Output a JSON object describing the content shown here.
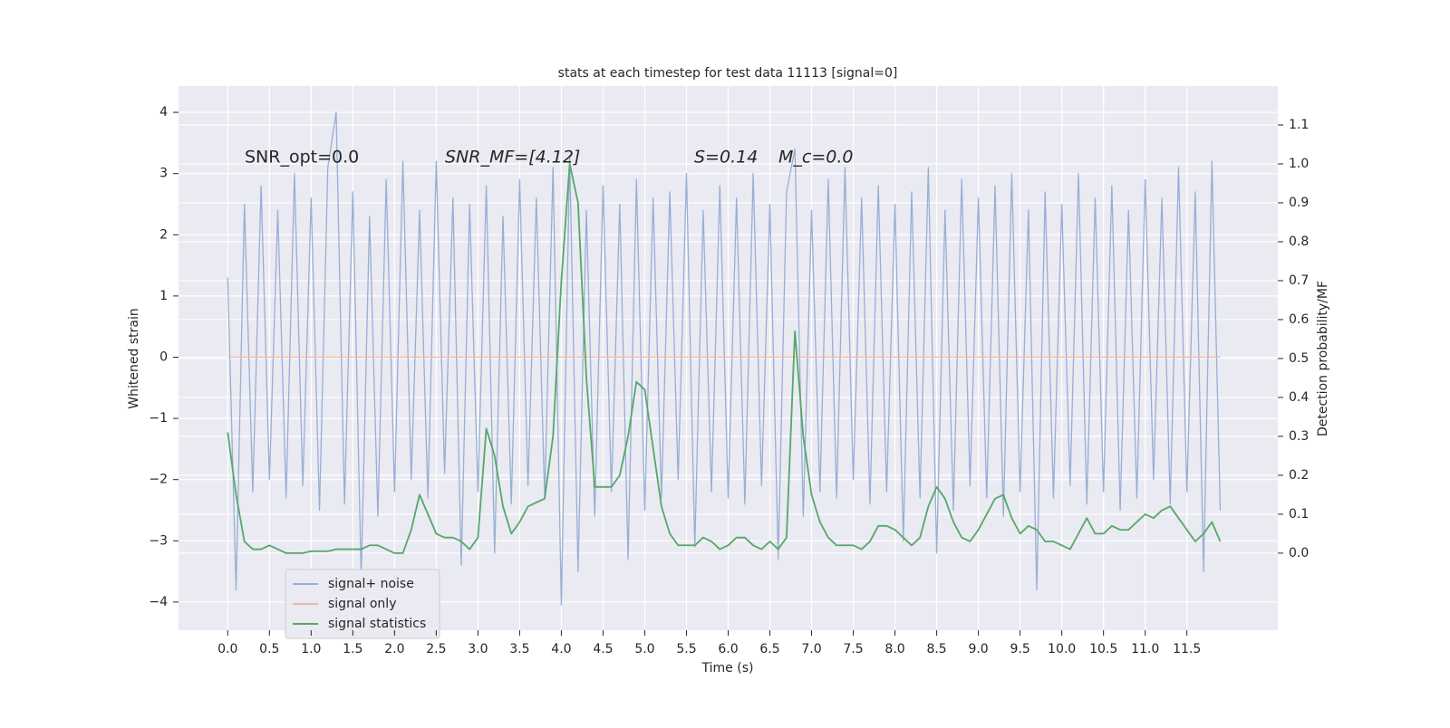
{
  "chart_data": {
    "type": "line",
    "title": "stats at each timestep for test data 11113 [signal=0]",
    "x_label": "Time (s)",
    "y_label": "Whitened strain",
    "y2_label": "Detection probability/MF",
    "annotations": [
      "SNR_opt=0.0",
      "SNR_MF=[4.12]",
      "S=0.14",
      "M_c=0.0"
    ],
    "grid": true,
    "legend": "lower left",
    "xlim": [
      -0.59,
      12.59
    ],
    "ylim": [
      -4.46,
      4.43
    ],
    "y2lim": [
      -0.198,
      1.2
    ],
    "xticks": [
      {
        "value": 0,
        "label": "0.0"
      },
      0.5,
      {
        "value": 1,
        "label": "1.0"
      },
      1.5,
      {
        "value": 2,
        "label": "2.0"
      },
      2.5,
      {
        "value": 3,
        "label": "3.0"
      },
      3.5,
      {
        "value": 4,
        "label": "4.0"
      },
      4.5,
      {
        "value": 5,
        "label": "5.0"
      },
      5.5,
      {
        "value": 6,
        "label": "6.0"
      },
      6.5,
      {
        "value": 7,
        "label": "7.0"
      },
      7.5,
      {
        "value": 8,
        "label": "8.0"
      },
      8.5,
      {
        "value": 9,
        "label": "9.0"
      },
      9.5,
      {
        "value": 10,
        "label": "10.0"
      },
      10.5,
      {
        "value": 11,
        "label": "11.0"
      },
      11.5
    ],
    "yticks": [
      {
        "value": -4,
        "label": "−4"
      },
      {
        "value": -3,
        "label": "−3"
      },
      {
        "value": -2,
        "label": "−2"
      },
      {
        "value": -1,
        "label": "−1"
      },
      0,
      1,
      2,
      3,
      4
    ],
    "y2ticks": [
      {
        "value": 0,
        "label": "0.0"
      },
      0.1,
      0.2,
      0.3,
      0.4,
      0.5,
      0.6,
      0.7,
      0.8,
      0.9,
      {
        "value": 1,
        "label": "1.0"
      },
      1.1
    ],
    "x": [
      0,
      0.1,
      0.2,
      0.3,
      0.4,
      0.5,
      0.6,
      0.7,
      0.8,
      0.9,
      1,
      1.1,
      1.2,
      1.3,
      1.4,
      1.5,
      1.6,
      1.7,
      1.8,
      1.9,
      2,
      2.1,
      2.2,
      2.3,
      2.4,
      2.5,
      2.6,
      2.7,
      2.8,
      2.9,
      3,
      3.1,
      3.2,
      3.3,
      3.4,
      3.5,
      3.6,
      3.7,
      3.8,
      3.9,
      4,
      4.1,
      4.2,
      4.3,
      4.4,
      4.5,
      4.6,
      4.7,
      4.8,
      4.9,
      5,
      5.1,
      5.2,
      5.3,
      5.4,
      5.5,
      5.6,
      5.7,
      5.8,
      5.9,
      6,
      6.1,
      6.2,
      6.3,
      6.4,
      6.5,
      6.6,
      6.7,
      6.8,
      6.9,
      7,
      7.1,
      7.2,
      7.3,
      7.4,
      7.5,
      7.6,
      7.7,
      7.8,
      7.9,
      8,
      8.1,
      8.2,
      8.3,
      8.4,
      8.5,
      8.6,
      8.7,
      8.8,
      8.9,
      9,
      9.1,
      9.2,
      9.3,
      9.4,
      9.5,
      9.6,
      9.7,
      9.8,
      9.9,
      10,
      10.1,
      10.2,
      10.3,
      10.4,
      10.5,
      10.6,
      10.7,
      10.8,
      10.9,
      11,
      11.1,
      11.2,
      11.3,
      11.4,
      11.5,
      11.6,
      11.7,
      11.8,
      11.9
    ],
    "series": [
      {
        "name": "signal+ noise",
        "color": "#98aed4",
        "values": [
          1.3,
          -3.8,
          2.5,
          -2.2,
          2.8,
          -2.0,
          2.4,
          -2.3,
          3.0,
          -2.1,
          2.6,
          -2.5,
          3.1,
          4.0,
          -2.4,
          2.7,
          -3.6,
          2.3,
          -2.6,
          2.9,
          -2.2,
          3.2,
          -2.0,
          2.4,
          -2.3,
          3.2,
          -1.9,
          2.6,
          -3.4,
          2.5,
          -2.2,
          2.8,
          -3.2,
          2.3,
          -2.4,
          2.9,
          -2.1,
          2.6,
          -2.3,
          3.1,
          -4.05,
          3.3,
          -3.5,
          2.4,
          -2.6,
          2.8,
          -2.2,
          2.5,
          -3.3,
          2.9,
          -2.5,
          2.6,
          -2.3,
          2.7,
          -2.0,
          3.0,
          -3.1,
          2.4,
          -2.2,
          2.8,
          -2.3,
          2.6,
          -2.4,
          3.0,
          -2.1,
          2.5,
          -3.3,
          2.7,
          3.4,
          -2.6,
          2.4,
          -2.2,
          2.9,
          -2.3,
          3.1,
          -2.0,
          2.6,
          -2.4,
          2.8,
          -2.2,
          2.5,
          -3.0,
          2.7,
          -2.3,
          3.1,
          -3.2,
          2.4,
          -2.5,
          2.9,
          -2.1,
          2.6,
          -2.3,
          2.8,
          -2.6,
          3.0,
          -2.2,
          2.4,
          -3.8,
          2.7,
          -2.3,
          2.5,
          -2.1,
          3.0,
          -2.4,
          2.6,
          -2.2,
          2.8,
          -2.5,
          2.4,
          -2.3,
          2.9,
          -2.0,
          2.6,
          -2.4,
          3.1,
          -2.2,
          2.7,
          -3.5,
          3.2,
          -2.5
        ]
      },
      {
        "name": "signal only",
        "color": "#eeb9a0",
        "values": [
          0,
          0,
          0,
          0,
          0,
          0,
          0,
          0,
          0,
          0,
          0,
          0,
          0,
          0,
          0,
          0,
          0,
          0,
          0,
          0,
          0,
          0,
          0,
          0,
          0,
          0,
          0,
          0,
          0,
          0,
          0,
          0,
          0,
          0,
          0,
          0,
          0,
          0,
          0,
          0,
          0,
          0,
          0,
          0,
          0,
          0,
          0,
          0,
          0,
          0,
          0,
          0,
          0,
          0,
          0,
          0,
          0,
          0,
          0,
          0,
          0,
          0,
          0,
          0,
          0,
          0,
          0,
          0,
          0,
          0,
          0,
          0,
          0,
          0,
          0,
          0,
          0,
          0,
          0,
          0,
          0,
          0,
          0,
          0,
          0,
          0,
          0,
          0,
          0,
          0,
          0,
          0,
          0,
          0,
          0,
          0,
          0,
          0,
          0,
          0,
          0,
          0,
          0,
          0,
          0,
          0,
          0,
          0,
          0,
          0,
          0,
          0,
          0,
          0,
          0,
          0,
          0,
          0,
          0,
          0
        ]
      },
      {
        "name": "signal statistics",
        "color": "#55a868",
        "axis": "y2",
        "values": [
          0.31,
          0.15,
          0.03,
          0.01,
          0.01,
          0.02,
          0.01,
          0.0,
          0.0,
          0.0,
          0.005,
          0.005,
          0.005,
          0.01,
          0.01,
          0.01,
          0.01,
          0.02,
          0.02,
          0.01,
          0.0,
          0.0,
          0.06,
          0.15,
          0.1,
          0.05,
          0.04,
          0.04,
          0.03,
          0.01,
          0.04,
          0.32,
          0.25,
          0.12,
          0.05,
          0.08,
          0.12,
          0.13,
          0.14,
          0.3,
          0.7,
          1.0,
          0.9,
          0.45,
          0.17,
          0.17,
          0.17,
          0.2,
          0.3,
          0.44,
          0.42,
          0.27,
          0.12,
          0.05,
          0.02,
          0.02,
          0.02,
          0.04,
          0.03,
          0.01,
          0.02,
          0.04,
          0.04,
          0.02,
          0.01,
          0.03,
          0.01,
          0.04,
          0.57,
          0.3,
          0.15,
          0.08,
          0.04,
          0.02,
          0.02,
          0.02,
          0.01,
          0.03,
          0.07,
          0.07,
          0.06,
          0.04,
          0.02,
          0.04,
          0.12,
          0.17,
          0.14,
          0.08,
          0.04,
          0.03,
          0.06,
          0.1,
          0.14,
          0.15,
          0.09,
          0.05,
          0.07,
          0.06,
          0.03,
          0.03,
          0.02,
          0.01,
          0.05,
          0.09,
          0.05,
          0.05,
          0.07,
          0.06,
          0.06,
          0.08,
          0.1,
          0.09,
          0.11,
          0.12,
          0.09,
          0.06,
          0.03,
          0.05,
          0.08,
          0.03
        ]
      }
    ]
  }
}
